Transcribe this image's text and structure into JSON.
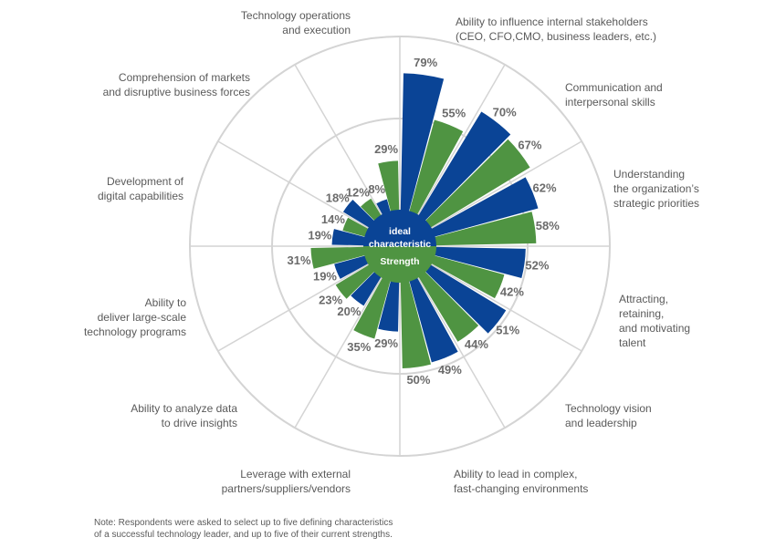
{
  "chart_data": {
    "type": "polar-bar",
    "title": "",
    "series": [
      {
        "name": "ideal characteristic",
        "color": "#0a4496"
      },
      {
        "name": "Strength",
        "color": "#4f9442"
      }
    ],
    "max_value": 100,
    "categories": [
      {
        "label": [
          "Ability to influence internal stakeholders",
          "(CEO, CFO,CMO, business leaders, etc.)"
        ],
        "ideal": 79,
        "strength": 55
      },
      {
        "label": [
          "Communication and",
          "interpersonal skills"
        ],
        "ideal": 70,
        "strength": 67
      },
      {
        "label": [
          "Understanding",
          "the organization’s",
          "strategic priorities"
        ],
        "ideal": 62,
        "strength": 58
      },
      {
        "label": [
          "Attracting,",
          "retaining,",
          "and motivating",
          "talent"
        ],
        "ideal": 52,
        "strength": 42
      },
      {
        "label": [
          "Technology vision",
          "and leadership"
        ],
        "ideal": 51,
        "strength": 44
      },
      {
        "label": [
          "Ability to lead in complex,",
          "fast-changing environments"
        ],
        "ideal": 49,
        "strength": 50
      },
      {
        "label": [
          "Leverage with external",
          "partners/suppliers/vendors"
        ],
        "ideal": 29,
        "strength": 35
      },
      {
        "label": [
          "Ability to analyze data",
          "to drive insights"
        ],
        "ideal": 20,
        "strength": 23
      },
      {
        "label": [
          "Ability to",
          "deliver large-scale",
          "technology programs"
        ],
        "ideal": 19,
        "strength": 31
      },
      {
        "label": [
          "Development of",
          "digital capabilities"
        ],
        "ideal": 19,
        "strength": 14
      },
      {
        "label": [
          "Comprehension of markets",
          "and disruptive business forces"
        ],
        "ideal": 18,
        "strength": 12
      },
      {
        "label": [
          "Technology operations",
          "and execution"
        ],
        "ideal": 8,
        "strength": 29
      }
    ],
    "center_labels": [
      "ideal",
      "characteristic",
      "Strength"
    ]
  },
  "note": {
    "line1": "Note: Respondents were asked to select up to five defining characteristics",
    "line2": "of a successful technology leader, and up to five of their current strengths."
  }
}
